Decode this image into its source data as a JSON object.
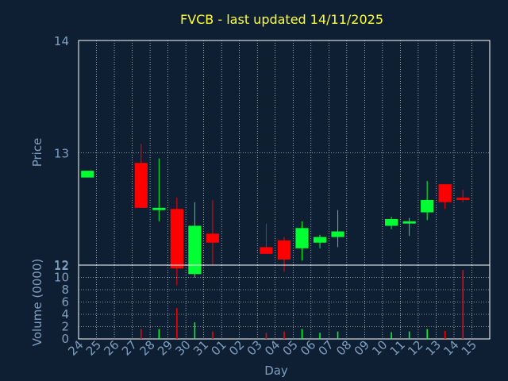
{
  "colors": {
    "background": "#0f1f33",
    "axis": "#ffffff",
    "grid": "#ffffff",
    "text": "#7f9fbf",
    "title": "#ffff33",
    "up": "#00ff33",
    "down": "#ff0000"
  },
  "chart_data": [
    {
      "type": "candlestick",
      "title": "FVCB - last updated 14/11/2025",
      "ylabel": "Price",
      "ylim": [
        12,
        14
      ],
      "yticks": [
        "12",
        "13",
        "14"
      ],
      "grid": true,
      "days": [
        "24",
        "25",
        "26",
        "27",
        "28",
        "29",
        "30",
        "31",
        "01",
        "02",
        "03",
        "04",
        "05",
        "06",
        "07",
        "08",
        "09",
        "10",
        "11",
        "12",
        "13",
        "14",
        "15"
      ],
      "candles": [
        {
          "day": "24",
          "open": 12.78,
          "close": 12.84,
          "high": 12.84,
          "low": 12.78,
          "dir": "up"
        },
        {
          "day": "27",
          "open": 12.91,
          "close": 12.51,
          "high": 13.08,
          "low": 12.51,
          "dir": "down"
        },
        {
          "day": "28",
          "open": 12.49,
          "close": 12.51,
          "high": 12.95,
          "low": 12.39,
          "dir": "up"
        },
        {
          "day": "29",
          "open": 12.5,
          "close": 11.97,
          "high": 12.6,
          "low": 11.82,
          "dir": "down"
        },
        {
          "day": "30",
          "open": 11.92,
          "close": 12.35,
          "high": 12.56,
          "low": 11.89,
          "dir": "up"
        },
        {
          "day": "31",
          "open": 12.28,
          "close": 12.2,
          "high": 12.58,
          "low": 12.0,
          "dir": "down"
        },
        {
          "day": "03",
          "open": 12.16,
          "close": 12.1,
          "high": 12.37,
          "low": 12.1,
          "dir": "down"
        },
        {
          "day": "04",
          "open": 12.22,
          "close": 12.05,
          "high": 12.25,
          "low": 11.94,
          "dir": "down"
        },
        {
          "day": "05",
          "open": 12.15,
          "close": 12.33,
          "high": 12.39,
          "low": 12.04,
          "dir": "up"
        },
        {
          "day": "06",
          "open": 12.2,
          "close": 12.25,
          "high": 12.27,
          "low": 12.15,
          "dir": "up"
        },
        {
          "day": "07",
          "open": 12.25,
          "close": 12.3,
          "high": 12.49,
          "low": 12.16,
          "dir": "up"
        },
        {
          "day": "10",
          "open": 12.35,
          "close": 12.41,
          "high": 12.43,
          "low": 12.32,
          "dir": "up"
        },
        {
          "day": "11",
          "open": 12.37,
          "close": 12.39,
          "high": 12.42,
          "low": 12.26,
          "dir": "up"
        },
        {
          "day": "12",
          "open": 12.47,
          "close": 12.58,
          "high": 12.75,
          "low": 12.4,
          "dir": "up"
        },
        {
          "day": "13",
          "open": 12.72,
          "close": 12.56,
          "high": 12.72,
          "low": 12.5,
          "dir": "down"
        },
        {
          "day": "14",
          "open": 12.6,
          "close": 12.58,
          "high": 12.67,
          "low": 12.56,
          "dir": "down"
        }
      ]
    },
    {
      "type": "bar",
      "ylabel": "Volume (0000)",
      "xlabel": "Day",
      "ylim": [
        0,
        12
      ],
      "yticks": [
        "0",
        "2",
        "4",
        "6",
        "8",
        "10",
        "12"
      ],
      "grid": true,
      "bars": [
        {
          "day": "27",
          "value": 1.6,
          "dir": "down"
        },
        {
          "day": "28",
          "value": 1.6,
          "dir": "up"
        },
        {
          "day": "29",
          "value": 5.0,
          "dir": "down"
        },
        {
          "day": "30",
          "value": 2.7,
          "dir": "up"
        },
        {
          "day": "31",
          "value": 1.2,
          "dir": "down"
        },
        {
          "day": "03",
          "value": 1.0,
          "dir": "down"
        },
        {
          "day": "04",
          "value": 1.2,
          "dir": "down"
        },
        {
          "day": "05",
          "value": 1.6,
          "dir": "up"
        },
        {
          "day": "06",
          "value": 1.0,
          "dir": "up"
        },
        {
          "day": "07",
          "value": 1.2,
          "dir": "up"
        },
        {
          "day": "10",
          "value": 1.1,
          "dir": "up"
        },
        {
          "day": "11",
          "value": 1.2,
          "dir": "up"
        },
        {
          "day": "12",
          "value": 1.6,
          "dir": "up"
        },
        {
          "day": "13",
          "value": 1.3,
          "dir": "down"
        },
        {
          "day": "14",
          "value": 11.2,
          "dir": "down"
        }
      ]
    }
  ]
}
